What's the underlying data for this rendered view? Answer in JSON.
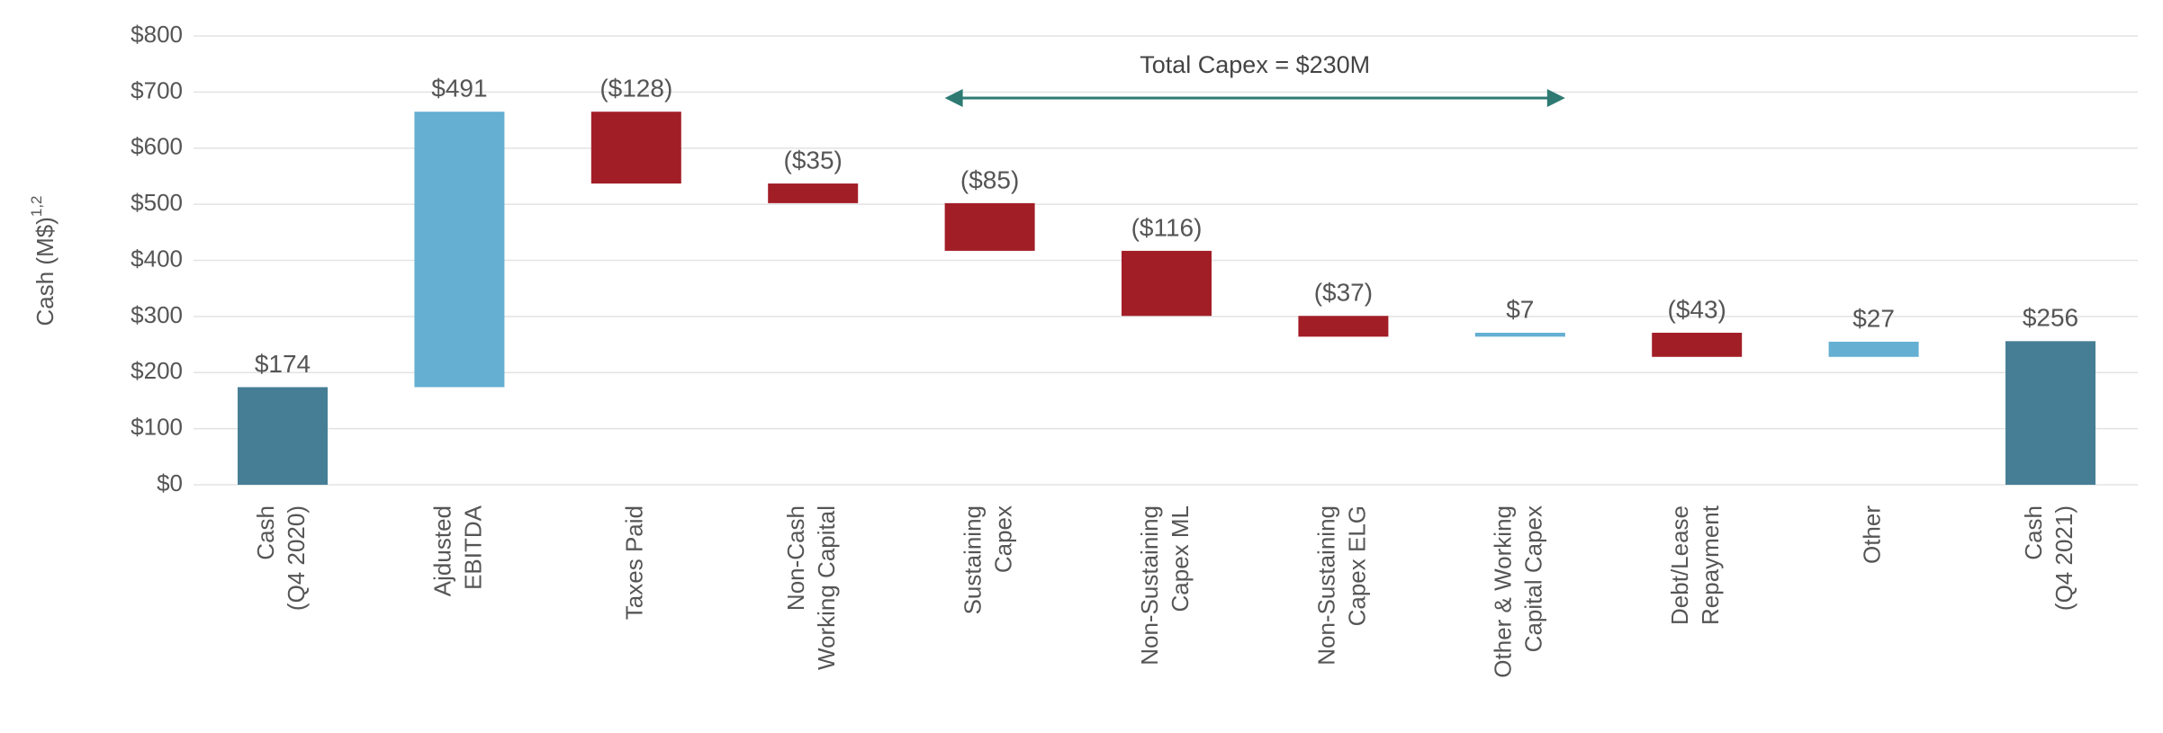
{
  "chart_data": {
    "type": "waterfall",
    "ylabel": "Cash (M$)",
    "ylabel_superscript": "1,2",
    "categories": [
      [
        "Cash",
        "(Q4 2020)"
      ],
      [
        "Ajdusted",
        "EBITDA"
      ],
      [
        "Taxes Paid"
      ],
      [
        "Non-Cash",
        "Working Capital"
      ],
      [
        "Sustaining",
        "Capex"
      ],
      [
        "Non-Sustaining",
        "Capex ML"
      ],
      [
        "Non-Sustaining",
        "Capex ELG"
      ],
      [
        "Other & Working",
        "Capital Capex"
      ],
      [
        "Debt/Lease",
        "Repayment"
      ],
      [
        "Other"
      ],
      [
        "Cash",
        "(Q4 2021)"
      ]
    ],
    "values": [
      174,
      491,
      -128,
      -35,
      -85,
      -116,
      -37,
      7,
      -43,
      27,
      256
    ],
    "value_labels": [
      "$174",
      "$491",
      "($128)",
      "($35)",
      "($85)",
      "($116)",
      "($37)",
      "$7",
      "($43)",
      "$27",
      "$256"
    ],
    "measure": [
      "total",
      "relative",
      "relative",
      "relative",
      "relative",
      "relative",
      "relative",
      "relative",
      "relative",
      "relative",
      "total"
    ],
    "colors": {
      "total": "#467f95",
      "increase": "#64afd2",
      "decrease": "#a21e27"
    },
    "annotation": "Total Capex = $230M",
    "ylim": [
      0,
      800
    ],
    "yticks": [
      {
        "value": 0,
        "label": "$0"
      },
      {
        "value": 100,
        "label": "$100"
      },
      {
        "value": 200,
        "label": "$200"
      },
      {
        "value": 300,
        "label": "$300"
      },
      {
        "value": 400,
        "label": "$400"
      },
      {
        "value": 500,
        "label": "$500"
      },
      {
        "value": 600,
        "label": "$600"
      },
      {
        "value": 700,
        "label": "$700"
      },
      {
        "value": 800,
        "label": "$800"
      }
    ],
    "grid": true
  }
}
